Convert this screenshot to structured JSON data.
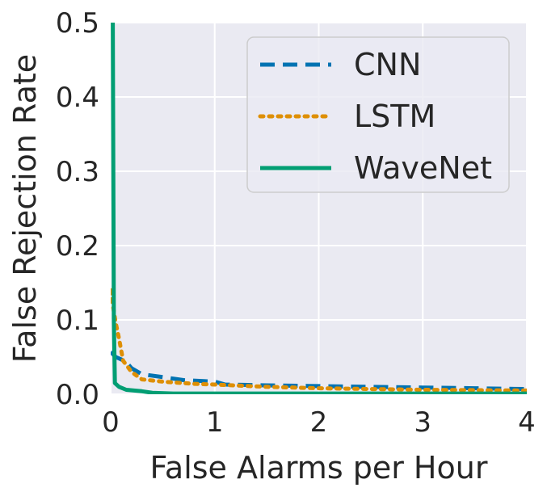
{
  "chart_data": {
    "type": "line",
    "title": "",
    "xlabel": "False Alarms per Hour",
    "ylabel": "False Rejection Rate",
    "xlim": [
      0,
      4
    ],
    "ylim": [
      0,
      0.5
    ],
    "x_ticks": [
      "0",
      "1",
      "2",
      "3",
      "4"
    ],
    "y_ticks": [
      "0.0",
      "0.1",
      "0.2",
      "0.3",
      "0.4",
      "0.5"
    ],
    "grid": true,
    "background": "#eaeaf2",
    "legend_position": "upper-right",
    "series": [
      {
        "name": "CNN",
        "color": "#0173b2",
        "dash": "dashed",
        "points": [
          [
            0.0,
            0.057
          ],
          [
            0.05,
            0.05
          ],
          [
            0.1,
            0.047
          ],
          [
            0.15,
            0.043
          ],
          [
            0.2,
            0.035
          ],
          [
            0.3,
            0.027
          ],
          [
            0.5,
            0.023
          ],
          [
            0.7,
            0.019
          ],
          [
            1.0,
            0.017
          ],
          [
            1.1,
            0.013
          ],
          [
            1.5,
            0.012
          ],
          [
            2.0,
            0.011
          ],
          [
            2.5,
            0.01
          ],
          [
            3.0,
            0.009
          ],
          [
            3.5,
            0.008
          ],
          [
            4.0,
            0.007
          ]
        ]
      },
      {
        "name": "LSTM",
        "color": "#de8f05",
        "dash": "dotted",
        "points": [
          [
            0.0,
            0.14
          ],
          [
            0.02,
            0.12
          ],
          [
            0.05,
            0.095
          ],
          [
            0.08,
            0.075
          ],
          [
            0.12,
            0.045
          ],
          [
            0.2,
            0.03
          ],
          [
            0.3,
            0.02
          ],
          [
            0.5,
            0.017
          ],
          [
            0.8,
            0.014
          ],
          [
            1.0,
            0.013
          ],
          [
            1.5,
            0.01
          ],
          [
            2.0,
            0.008
          ],
          [
            3.0,
            0.006
          ],
          [
            4.0,
            0.005
          ]
        ]
      },
      {
        "name": "WaveNet",
        "color": "#029e73",
        "dash": "solid",
        "points": [
          [
            0.02,
            0.5
          ],
          [
            0.03,
            0.1
          ],
          [
            0.04,
            0.015
          ],
          [
            0.08,
            0.01
          ],
          [
            0.15,
            0.006
          ],
          [
            0.3,
            0.004
          ],
          [
            0.4,
            0.002
          ],
          [
            0.6,
            0.001
          ],
          [
            1.0,
            0.001
          ],
          [
            2.0,
            0.001
          ],
          [
            3.0,
            0.001
          ],
          [
            4.0,
            0.001
          ]
        ]
      }
    ]
  }
}
